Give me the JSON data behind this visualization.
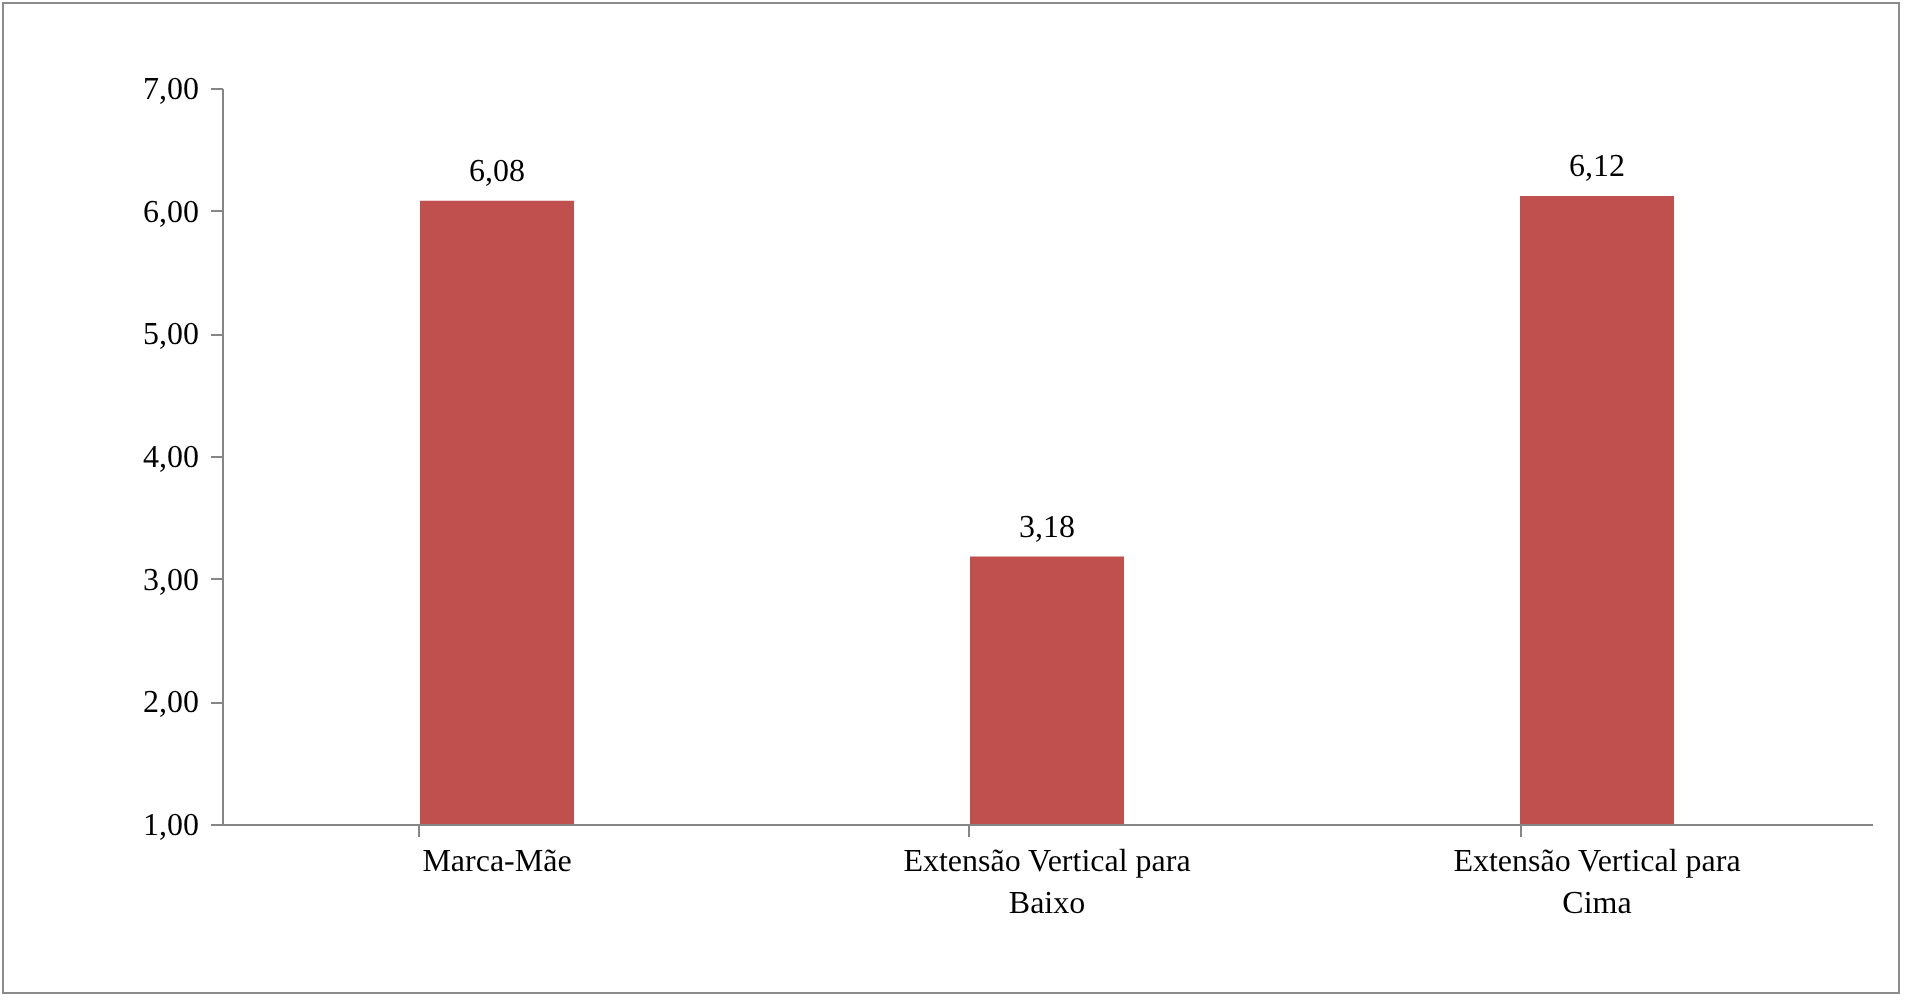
{
  "chart_data": {
    "type": "bar",
    "categories": [
      "Marca-Mãe",
      "Extensão Vertical para Baixo",
      "Extensão Vertical para Cima"
    ],
    "values": [
      6.08,
      3.18,
      6.12
    ],
    "value_labels": [
      "6,08",
      "3,18",
      "6,12"
    ],
    "color": "#c0504d",
    "ylim": [
      1,
      7
    ],
    "yticks": [
      {
        "value": 1,
        "label": "1,00"
      },
      {
        "value": 2,
        "label": "2,00"
      },
      {
        "value": 3,
        "label": "3,00"
      },
      {
        "value": 4,
        "label": "4,00"
      },
      {
        "value": 5,
        "label": "5,00"
      },
      {
        "value": 6,
        "label": "6,00"
      },
      {
        "value": 7,
        "label": "7,00"
      }
    ],
    "grid": false
  }
}
